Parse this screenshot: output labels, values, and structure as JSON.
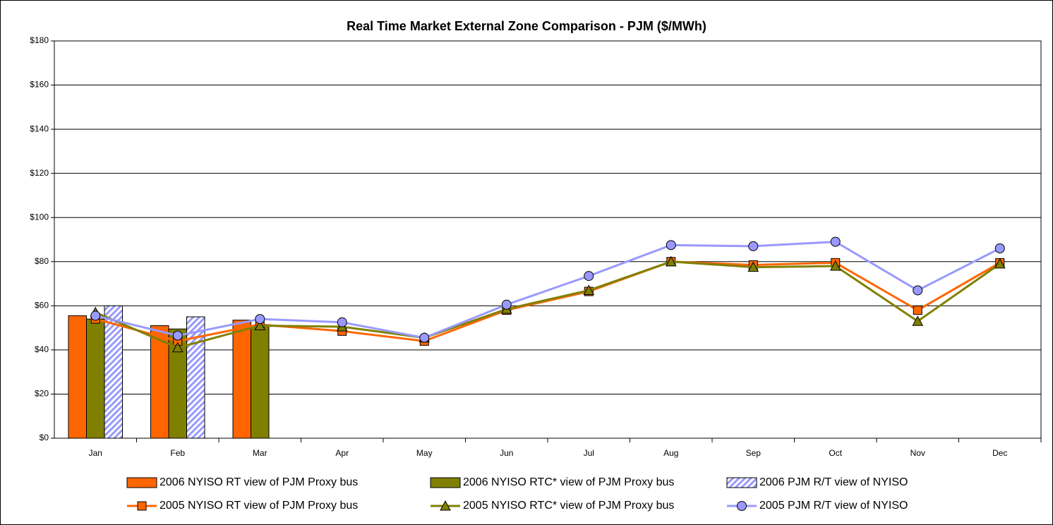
{
  "chart_data": {
    "type": "bar-line",
    "title": "Real Time Market External Zone Comparison - PJM ($/MWh)",
    "categories": [
      "Jan",
      "Feb",
      "Mar",
      "Apr",
      "May",
      "Jun",
      "Jul",
      "Aug",
      "Sep",
      "Oct",
      "Nov",
      "Dec"
    ],
    "ylim": [
      0,
      180
    ],
    "yticks": [
      {
        "value": 0,
        "label": "$0"
      },
      {
        "value": 20,
        "label": "$20"
      },
      {
        "value": 40,
        "label": "$40"
      },
      {
        "value": 60,
        "label": "$60"
      },
      {
        "value": 80,
        "label": "$80"
      },
      {
        "value": 100,
        "label": "$100"
      },
      {
        "value": 120,
        "label": "$120"
      },
      {
        "value": 140,
        "label": "$140"
      },
      {
        "value": 160,
        "label": "$160"
      },
      {
        "value": 180,
        "label": "$180"
      }
    ],
    "grid": true,
    "legend": "bottom",
    "series": [
      {
        "name": "2006 NYISO RT view of PJM Proxy bus",
        "type": "bar",
        "color": "#ff6600",
        "values": [
          55.5,
          51,
          53.5,
          null,
          null,
          null,
          null,
          null,
          null,
          null,
          null,
          null
        ]
      },
      {
        "name": "2006 NYISO RTC* view of PJM Proxy bus",
        "type": "bar",
        "color": "#808000",
        "values": [
          54,
          49.5,
          51,
          null,
          null,
          null,
          null,
          null,
          null,
          null,
          null,
          null
        ]
      },
      {
        "name": "2006 PJM R/T view of NYISO",
        "type": "bar",
        "color": "#9999ff",
        "pattern": "hatch",
        "values": [
          60,
          55,
          null,
          null,
          null,
          null,
          null,
          null,
          null,
          null,
          null,
          null
        ]
      },
      {
        "name": "2005 NYISO RT view of PJM Proxy bus",
        "type": "line",
        "color": "#ff6600",
        "marker": "square",
        "values": [
          54,
          44,
          51.5,
          48.5,
          44,
          58,
          66.5,
          80,
          78.5,
          79.5,
          58,
          79.5
        ]
      },
      {
        "name": "2005 NYISO RTC* view of PJM Proxy bus",
        "type": "line",
        "color": "#808000",
        "marker": "triangle",
        "values": [
          57,
          41,
          51,
          50.5,
          45.5,
          58.5,
          67,
          80,
          77.5,
          78,
          53,
          79
        ]
      },
      {
        "name": "2005 PJM R/T view of NYISO",
        "type": "line",
        "color": "#9999ff",
        "marker": "circle",
        "values": [
          55.5,
          46.5,
          54,
          52.5,
          45.5,
          60.5,
          73.5,
          87.5,
          87,
          89,
          67,
          86
        ]
      }
    ]
  }
}
